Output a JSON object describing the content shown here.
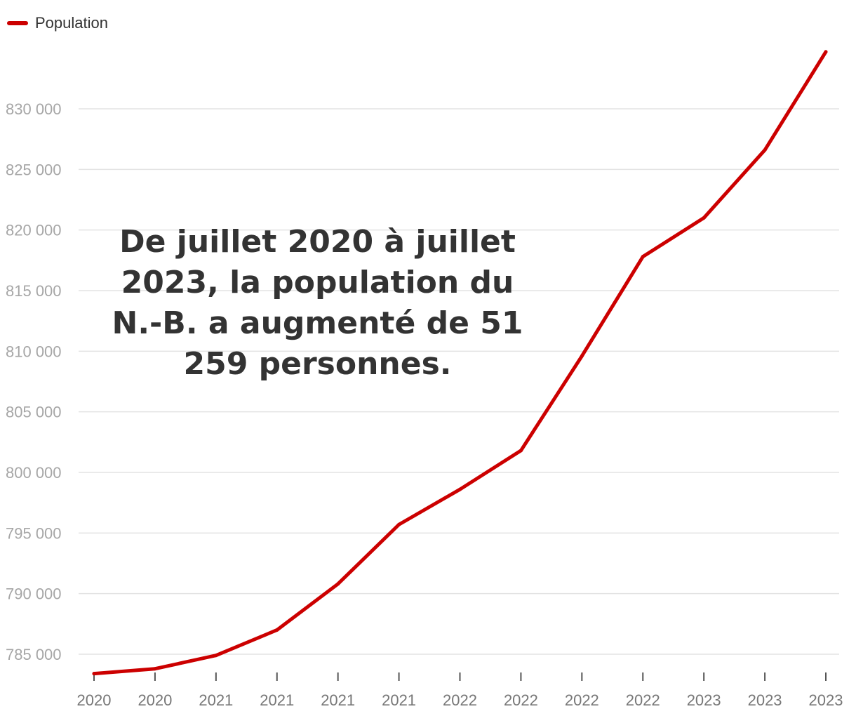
{
  "legend": {
    "label": "Population"
  },
  "annotation": {
    "text": "De juillet 2020 à juillet 2023, la population du N.-B. a augmenté de 51 259 personnes."
  },
  "colors": {
    "line": "#cc0000",
    "grid": "#e3e3e3",
    "axis_text": "#a6a6a6",
    "tick_text": "#777777",
    "annotation_text": "#333333"
  },
  "chart_data": {
    "type": "line",
    "title": "",
    "xlabel": "",
    "ylabel": "",
    "categories": [
      "2020",
      "2020",
      "2021",
      "2021",
      "2021",
      "2021",
      "2022",
      "2022",
      "2022",
      "2022",
      "2023",
      "2023",
      "2023"
    ],
    "series": [
      {
        "name": "Population",
        "values": [
          783400,
          783800,
          784900,
          787000,
          790800,
          795700,
          798600,
          801800,
          809600,
          817800,
          821000,
          826600,
          834700
        ]
      }
    ],
    "y_ticks": [
      785000,
      790000,
      795000,
      800000,
      805000,
      810000,
      815000,
      820000,
      825000,
      830000
    ],
    "y_tick_labels": [
      "785 000",
      "790 000",
      "795 000",
      "800 000",
      "805 000",
      "810 000",
      "815 000",
      "820 000",
      "825 000",
      "830 000"
    ],
    "ylim": [
      783400,
      834700
    ],
    "grid": true,
    "legend_position": "top-left"
  }
}
